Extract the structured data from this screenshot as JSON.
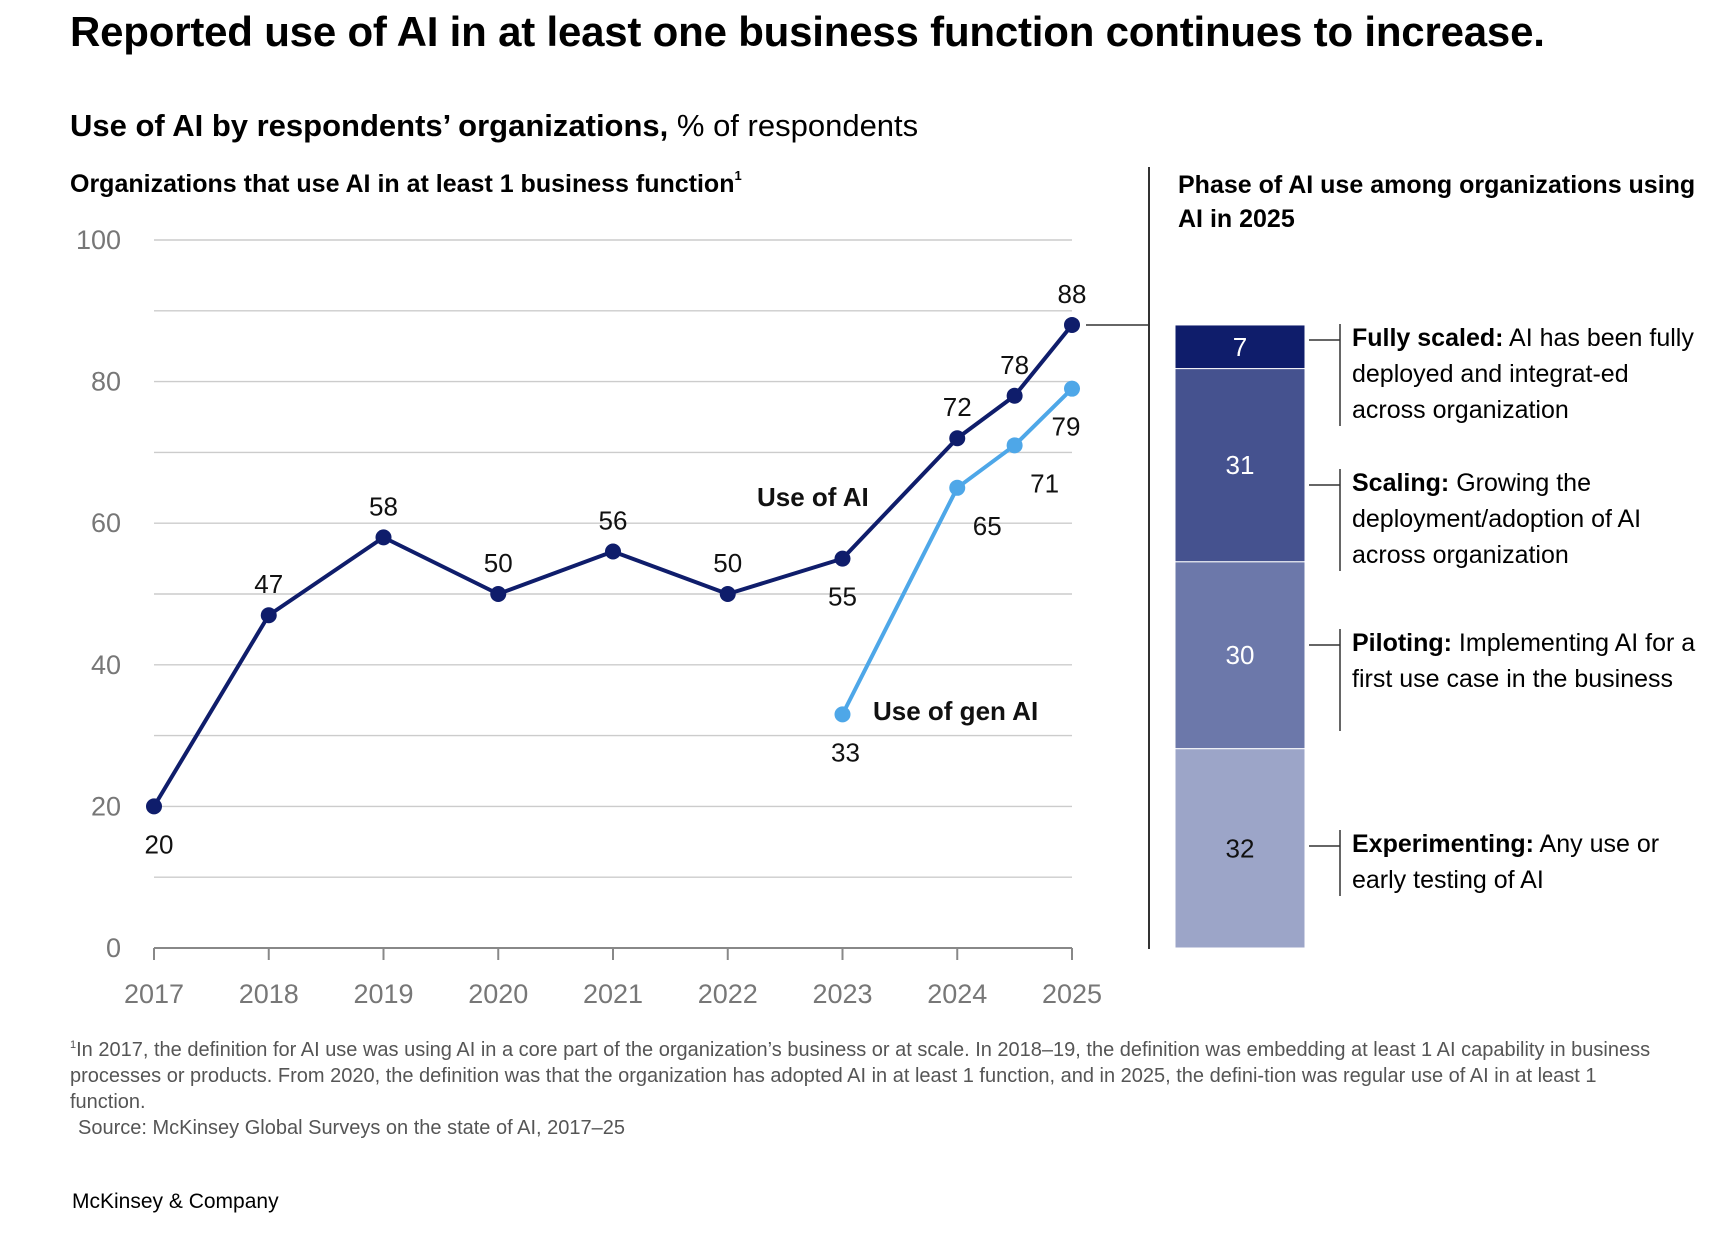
{
  "headline": "Reported use of AI in at least one business function continues to increase.",
  "subtitle": {
    "bold": "Use of AI by respondents’ organizations,",
    "rest": " % of respondents"
  },
  "left_chart_title": "Organizations that use AI in at least 1 business function",
  "left_chart_title_sup": "1",
  "right_chart_title": "Phase of AI use among organizations using AI in 2025",
  "chart_data": [
    {
      "type": "line",
      "title": "Organizations that use AI in at least 1 business function",
      "x_tick_labels": [
        "2017",
        "2018",
        "2019",
        "2020",
        "2021",
        "2022",
        "2023",
        "2024",
        "2025"
      ],
      "ylim": [
        0,
        100
      ],
      "y_ticks": [
        0,
        20,
        40,
        60,
        80,
        100
      ],
      "grid": true,
      "colors": {
        "use_of_ai": "#0f1d6b",
        "use_of_gen_ai": "#4ea7e8",
        "grid": "#cccccc",
        "axis": "#888888"
      },
      "series": [
        {
          "name": "Use of AI",
          "x": [
            2017,
            2018,
            2019,
            2020,
            2021,
            2022,
            2023,
            2024,
            2024.5,
            2025
          ],
          "values": [
            20,
            47,
            58,
            50,
            56,
            50,
            55,
            72,
            78,
            88
          ]
        },
        {
          "name": "Use of gen AI",
          "x": [
            2023,
            2024,
            2024.5,
            2025
          ],
          "values": [
            33,
            65,
            71,
            79
          ]
        }
      ]
    },
    {
      "type": "bar",
      "stacked": true,
      "title": "Phase of AI use among organizations using AI in 2025",
      "segments": [
        {
          "value": 32,
          "color": "#9ca5c8",
          "name": "Experimenting:",
          "desc": " Any use or early testing of AI"
        },
        {
          "value": 30,
          "color": "#6c78aa",
          "name": "Piloting:",
          "desc": " Implementing AI for a first use case in the business"
        },
        {
          "value": 31,
          "color": "#45528f",
          "name": "Scaling:",
          "desc": " Growing the deployment/adoption of AI across organization"
        },
        {
          "value": 7,
          "color": "#0f1d6b",
          "name": "Fully scaled:",
          "desc": " AI has been fully deployed and integrat-ed across organization"
        }
      ]
    }
  ],
  "footnote": {
    "sup": "1",
    "text": "In 2017, the definition for AI use was using AI in a core part of the organization’s business or at scale. In 2018–19, the definition was embedding at least 1 AI capability in business processes or products. From 2020, the definition was that the organization has adopted AI in at least 1 function, and in 2025, the defini-tion was regular use of AI in at least 1 function.",
    "source": "Source: McKinsey Global Surveys on the state of AI, 2017–25"
  },
  "brand": "McKinsey & Company"
}
